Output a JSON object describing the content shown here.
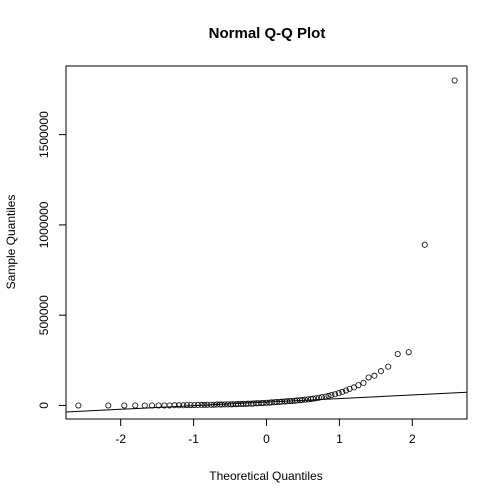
{
  "chart_data": {
    "type": "scatter",
    "title": "Normal Q-Q Plot",
    "xlabel": "Theoretical Quantiles",
    "ylabel": "Sample Quantiles",
    "xlim": [
      -2.75,
      2.75
    ],
    "ylim": [
      -75000,
      1880000
    ],
    "x_ticks": [
      -2,
      -1,
      0,
      1,
      2
    ],
    "x_tick_labels": [
      "-2",
      "-1",
      "0",
      "1",
      "2"
    ],
    "y_ticks": [
      0,
      500000,
      1000000,
      1500000
    ],
    "y_tick_labels": [
      "0",
      "500000",
      "1000000",
      "1500000"
    ],
    "grid": false,
    "reference_line": {
      "x": [
        -2.75,
        2.75
      ],
      "y": [
        -36000,
        73000
      ]
    },
    "points": {
      "x": [
        -2.58,
        -2.17,
        -1.95,
        -1.8,
        -1.67,
        -1.57,
        -1.48,
        -1.4,
        -1.33,
        -1.26,
        -1.2,
        -1.14,
        -1.09,
        -1.04,
        -0.99,
        -0.94,
        -0.89,
        -0.85,
        -0.81,
        -0.76,
        -0.72,
        -0.68,
        -0.64,
        -0.61,
        -0.57,
        -0.53,
        -0.49,
        -0.46,
        -0.42,
        -0.39,
        -0.35,
        -0.32,
        -0.28,
        -0.25,
        -0.21,
        -0.18,
        -0.14,
        -0.11,
        -0.07,
        -0.04,
        0.0,
        0.04,
        0.07,
        0.11,
        0.14,
        0.18,
        0.21,
        0.25,
        0.28,
        0.32,
        0.35,
        0.39,
        0.42,
        0.46,
        0.49,
        0.53,
        0.57,
        0.61,
        0.64,
        0.68,
        0.72,
        0.76,
        0.81,
        0.85,
        0.89,
        0.94,
        0.99,
        1.04,
        1.09,
        1.14,
        1.2,
        1.26,
        1.33,
        1.4,
        1.48,
        1.57,
        1.67,
        1.8,
        1.95,
        2.17,
        2.58
      ],
      "y": [
        0,
        0,
        0,
        0,
        0,
        0,
        0,
        0,
        0,
        1000,
        1000,
        1000,
        2000,
        2000,
        2000,
        3000,
        3000,
        3000,
        4000,
        4000,
        4000,
        5000,
        5000,
        5000,
        6000,
        6000,
        6000,
        7000,
        7000,
        8000,
        8000,
        9000,
        9000,
        10000,
        10000,
        11000,
        12000,
        12000,
        13000,
        14000,
        15000,
        16000,
        17000,
        18000,
        19000,
        20000,
        21000,
        22000,
        23000,
        24000,
        25000,
        26000,
        28000,
        29000,
        30000,
        32000,
        34000,
        36000,
        38000,
        40000,
        43000,
        46000,
        49000,
        53000,
        57000,
        62000,
        68000,
        75000,
        83000,
        92000,
        100000,
        112000,
        125000,
        155000,
        165000,
        190000,
        215000,
        285000,
        295000,
        890000,
        1800000
      ]
    }
  }
}
